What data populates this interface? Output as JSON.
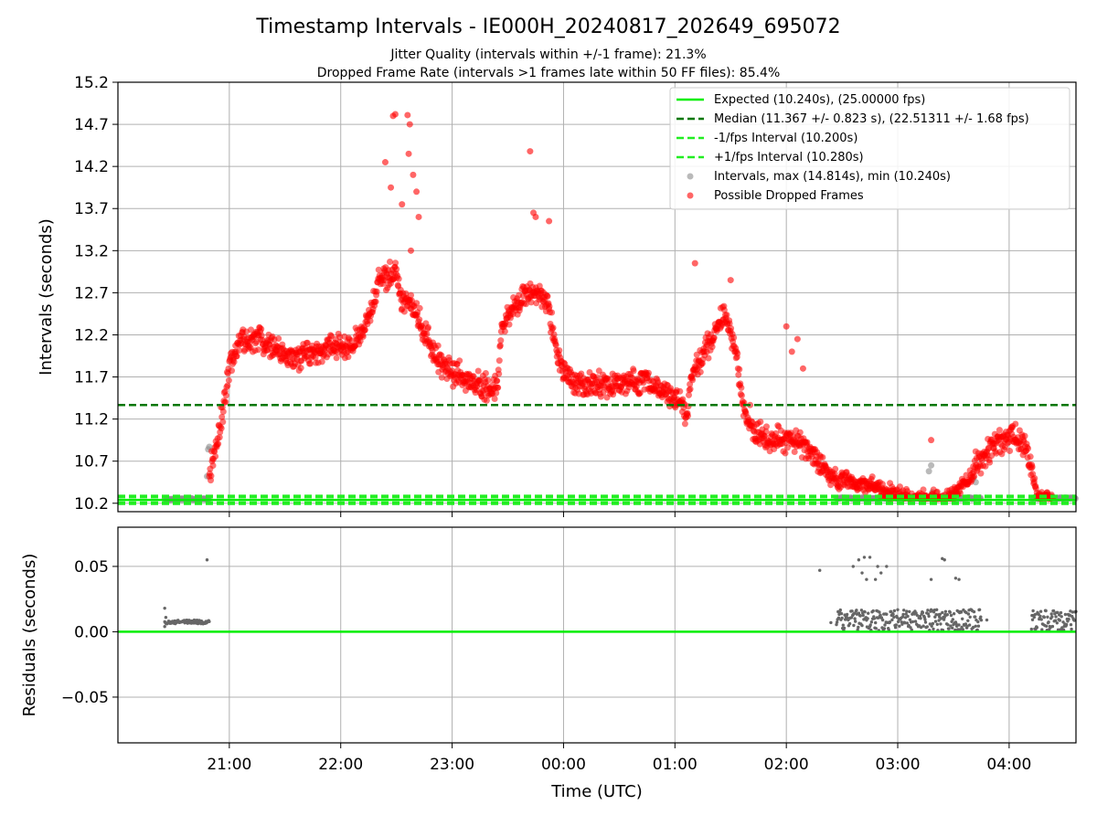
{
  "header": {
    "title": "Timestamp Intervals - IE000H_20240817_202649_695072",
    "subtitle_1": "Jitter Quality (intervals within +/-1 frame): 21.3%",
    "subtitle_2": "Dropped Frame Rate (intervals >1 frames late within 50 FF files): 85.4%"
  },
  "colors": {
    "expected": "#00ee00",
    "median": "#007700",
    "interval_band": "#22ee22",
    "intervals": "#8c8c8c",
    "dropped": "#ff0000",
    "residuals": "#666666",
    "grid": "#b0b0b0"
  },
  "chart_data": [
    {
      "type": "scatter",
      "panel": "intervals",
      "ylabel": "Intervals (seconds)",
      "x_axis": "time (UTC), hours after 00:00 of the first day; 24+ = next day",
      "xlim": [
        20.0,
        28.6
      ],
      "ylim": [
        10.1,
        15.2
      ],
      "y_ticks": [
        "10.2",
        "10.7",
        "11.2",
        "11.7",
        "12.2",
        "12.7",
        "13.2",
        "13.7",
        "14.2",
        "14.7",
        "15.2"
      ],
      "x_ticks": [
        21,
        22,
        23,
        24,
        25,
        26,
        27,
        28
      ],
      "grid": true,
      "legend_position": "upper right",
      "reference_lines": {
        "expected": 10.24,
        "median": 11.367,
        "minus_one_frame": 10.2,
        "plus_one_frame": 10.28
      },
      "legend": [
        "Expected (10.240s), (25.00000 fps)",
        "Median (11.367 +/- 0.823 s), (22.51311 +/- 1.68 fps)",
        "-1/fps Interval (10.200s)",
        "+1/fps Interval (10.280s)",
        "Intervals, max (14.814s), min (10.240s)",
        "Possible Dropped Frames"
      ],
      "series": [
        {
          "name": "Intervals, max (14.814s), min (10.240s)",
          "kind": "within tolerance",
          "segments": [
            {
              "x": [
                20.42,
                20.82
              ],
              "y": 10.25
            },
            {
              "x": [
                26.45,
                27.75
              ],
              "y": 10.26
            },
            {
              "x": [
                28.2,
                28.6
              ],
              "y": 10.26
            }
          ],
          "outliers": [
            [
              20.8,
              10.52
            ],
            [
              20.81,
              10.84
            ],
            [
              20.82,
              10.87
            ],
            [
              27.28,
              10.58
            ],
            [
              27.3,
              10.65
            ],
            [
              27.31,
              10.33
            ],
            [
              27.68,
              10.5
            ],
            [
              27.7,
              10.45
            ]
          ]
        },
        {
          "name": "Possible Dropped Frames",
          "kind": "late intervals",
          "trend": [
            [
              20.82,
              10.55
            ],
            [
              20.9,
              11.0
            ],
            [
              21.0,
              11.8
            ],
            [
              21.1,
              12.15
            ],
            [
              21.3,
              12.15
            ],
            [
              21.5,
              11.95
            ],
            [
              21.7,
              11.95
            ],
            [
              21.9,
              12.05
            ],
            [
              22.1,
              12.05
            ],
            [
              22.25,
              12.35
            ],
            [
              22.35,
              12.85
            ],
            [
              22.5,
              12.95
            ],
            [
              22.55,
              12.55
            ],
            [
              22.62,
              12.6
            ],
            [
              22.7,
              12.4
            ],
            [
              22.85,
              11.95
            ],
            [
              23.0,
              11.75
            ],
            [
              23.2,
              11.6
            ],
            [
              23.4,
              11.55
            ],
            [
              23.45,
              12.3
            ],
            [
              23.6,
              12.65
            ],
            [
              23.75,
              12.7
            ],
            [
              23.85,
              12.6
            ],
            [
              23.95,
              11.9
            ],
            [
              24.1,
              11.6
            ],
            [
              24.3,
              11.6
            ],
            [
              24.5,
              11.6
            ],
            [
              24.7,
              11.65
            ],
            [
              24.9,
              11.55
            ],
            [
              25.05,
              11.4
            ],
            [
              25.1,
              11.2
            ],
            [
              25.15,
              11.7
            ],
            [
              25.3,
              12.1
            ],
            [
              25.45,
              12.45
            ],
            [
              25.55,
              12.0
            ],
            [
              25.62,
              11.3
            ],
            [
              25.75,
              11.0
            ],
            [
              25.9,
              10.95
            ],
            [
              26.1,
              10.95
            ],
            [
              26.25,
              10.75
            ],
            [
              26.4,
              10.5
            ],
            [
              26.6,
              10.45
            ],
            [
              26.8,
              10.4
            ],
            [
              26.95,
              10.3
            ],
            [
              27.3,
              10.25
            ],
            [
              27.5,
              10.26
            ],
            [
              27.8,
              10.8
            ],
            [
              28.0,
              11.0
            ],
            [
              28.15,
              10.9
            ],
            [
              28.25,
              10.3
            ],
            [
              28.4,
              10.25
            ]
          ],
          "peaks": [
            [
              22.47,
              14.8
            ],
            [
              22.49,
              14.82
            ],
            [
              22.6,
              14.81
            ],
            [
              22.62,
              14.7
            ],
            [
              22.61,
              14.35
            ],
            [
              22.65,
              14.1
            ],
            [
              22.68,
              13.9
            ],
            [
              22.7,
              13.6
            ],
            [
              22.4,
              14.25
            ],
            [
              22.45,
              13.95
            ],
            [
              22.55,
              13.75
            ],
            [
              22.63,
              13.2
            ],
            [
              23.7,
              14.38
            ],
            [
              23.75,
              13.6
            ],
            [
              23.73,
              13.65
            ],
            [
              23.87,
              13.55
            ],
            [
              25.18,
              13.05
            ],
            [
              25.5,
              12.85
            ],
            [
              26.0,
              12.3
            ],
            [
              26.05,
              12.0
            ],
            [
              26.1,
              12.15
            ],
            [
              26.15,
              11.8
            ],
            [
              27.3,
              10.95
            ]
          ]
        }
      ]
    },
    {
      "type": "scatter",
      "panel": "residuals",
      "xlabel": "Time (UTC)",
      "ylabel": "Residuals (seconds)",
      "xlim": [
        20.0,
        28.6
      ],
      "ylim": [
        -0.085,
        0.08
      ],
      "y_ticks": [
        "0.05",
        "0.00",
        "−0.05"
      ],
      "x_ticks": [
        "21:00",
        "22:00",
        "23:00",
        "00:00",
        "01:00",
        "02:00",
        "03:00",
        "04:00"
      ],
      "grid": true,
      "reference_lines": {
        "zero": 0.0
      },
      "series": [
        {
          "name": "Residuals",
          "clusters": [
            {
              "x": [
                20.42,
                20.82
              ],
              "y_range": [
                0.006,
                0.009
              ]
            },
            {
              "x": [
                26.45,
                27.75
              ],
              "y_range": [
                0.001,
                0.017
              ]
            },
            {
              "x": [
                28.2,
                28.6
              ],
              "y_range": [
                0.001,
                0.017
              ]
            }
          ],
          "points": [
            [
              20.42,
              0.018
            ],
            [
              20.43,
              0.011
            ],
            [
              20.42,
              0.004
            ],
            [
              20.8,
              0.055
            ],
            [
              26.3,
              0.047
            ],
            [
              26.6,
              0.05
            ],
            [
              26.65,
              0.055
            ],
            [
              26.7,
              0.057
            ],
            [
              26.68,
              0.045
            ],
            [
              26.75,
              0.057
            ],
            [
              26.8,
              0.04
            ],
            [
              26.82,
              0.05
            ],
            [
              26.9,
              0.05
            ],
            [
              26.85,
              0.045
            ],
            [
              26.72,
              0.04
            ],
            [
              27.3,
              0.04
            ],
            [
              27.4,
              0.056
            ],
            [
              27.42,
              0.055
            ],
            [
              27.52,
              0.041
            ],
            [
              27.55,
              0.04
            ],
            [
              27.8,
              0.009
            ],
            [
              26.4,
              0.007
            ]
          ]
        }
      ]
    }
  ]
}
